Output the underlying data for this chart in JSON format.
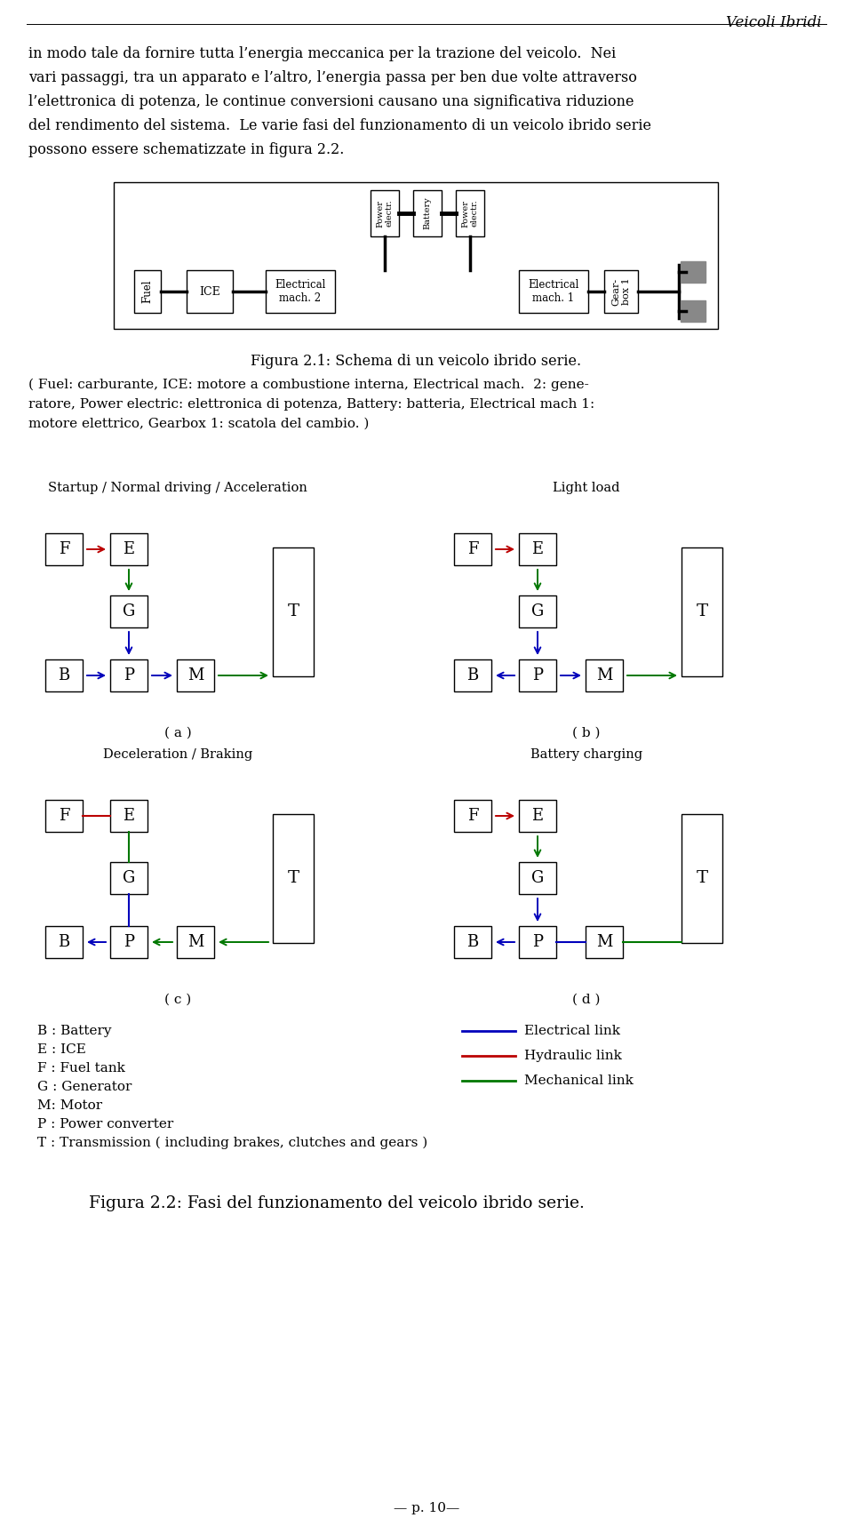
{
  "page_title": "Veicoli Ibridi",
  "body_text_lines": [
    "in modo tale da fornire tutta l’energia meccanica per la trazione del veicolo.  Nei",
    "vari passaggi, tra un apparato e l’altro, l’energia passa per ben due volte attraverso",
    "l’elettronica di potenza, le continue conversioni causano una significativa riduzione",
    "del rendimento del sistema.  Le varie fasi del funzionamento di un veicolo ibrido serie",
    "possono essere schematizzate in figura 2.2."
  ],
  "fig1_caption": "Figura 2.1: Schema di un veicolo ibrido serie.",
  "fig1_note_lines": [
    "( Fuel: carburante, ICE: motore a combustione interna, Electrical mach.  2: gene-",
    "ratore, Power electric: elettronica di potenza, Battery: batteria, Electrical mach 1:",
    "motore elettrico, Gearbox 1: scatola del cambio. )"
  ],
  "mode_titles": [
    "Startup / Normal driving / Acceleration",
    "Light load",
    "Deceleration / Braking",
    "Battery charging"
  ],
  "mode_labels": [
    "( a )",
    "( b )",
    "( c )",
    "( d )"
  ],
  "legend_left": [
    "B : Battery",
    "E : ICE",
    "F : Fuel tank",
    "G : Generator",
    "M: Motor",
    "P : Power converter",
    "T : Transmission ( including brakes, clutches and gears )"
  ],
  "legend_right_labels": [
    "Electrical link",
    "Hydraulic link",
    "Mechanical link"
  ],
  "legend_right_colors": [
    "#0000BB",
    "#BB0000",
    "#007700"
  ],
  "fig2_caption": "Figura 2.2: Fasi del funzionamento del veicolo ibrido serie.",
  "page_number": "p. 10",
  "color_blue": "#0000BB",
  "color_red": "#BB0000",
  "color_green": "#007700",
  "color_black": "#000000",
  "color_gray": "#888888"
}
